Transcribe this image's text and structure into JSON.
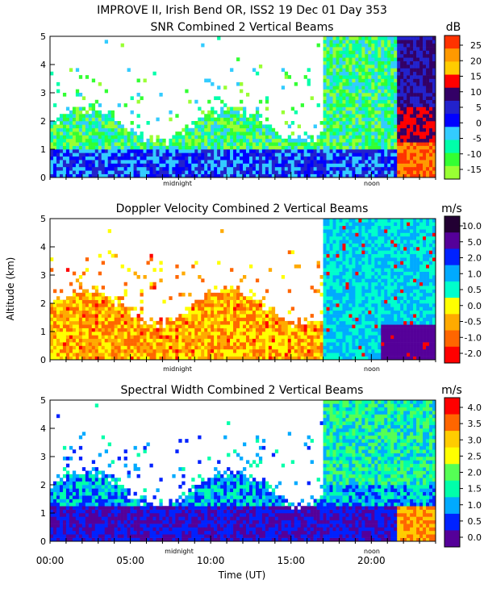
{
  "figure_title": "IMPROVE II,  Irish Bend OR, ISS2  19 Dec 01 Day 353",
  "x_axis_title": "Time (UT)",
  "y_axis_title": "Altitude (km)",
  "x_tick_labels": [
    "00:00",
    "05:00",
    "10:00",
    "15:00",
    "20:00"
  ],
  "y_tick_labels": [
    "0",
    "1",
    "2",
    "3",
    "4",
    "5"
  ],
  "marker_labels": {
    "midnight": "midnight",
    "noon": "noon"
  },
  "chart_data": [
    {
      "type": "heatmap",
      "title": "SNR Combined 2 Vertical Beams",
      "xlabel": "",
      "ylabel": "",
      "xlim": [
        0,
        24
      ],
      "ylim": [
        0,
        5
      ],
      "units": "dB",
      "colorbar_ticks": [
        "25",
        "20",
        "15",
        "10",
        "5",
        "0",
        "-5",
        "-10",
        "-15"
      ],
      "colors": [
        "#ff3300",
        "#ff9900",
        "#ffcc00",
        "#ff0000",
        "#330066",
        "#2222cc",
        "#0000ff",
        "#33ccff",
        "#00ffaa",
        "#33ff33",
        "#99ff33"
      ]
    },
    {
      "type": "heatmap",
      "title": "Doppler Velocity Combined 2 Vertical Beams",
      "xlabel": "",
      "ylabel": "Altitude (km)",
      "xlim": [
        0,
        24
      ],
      "ylim": [
        0,
        5
      ],
      "units": "m/s",
      "colorbar_ticks": [
        "10.0",
        "5.0",
        "2.0",
        "1.0",
        "0.5",
        "0.0",
        "-0.5",
        "-1.0",
        "-2.0"
      ],
      "colors": [
        "#220033",
        "#550099",
        "#0022ff",
        "#00aaff",
        "#00ffcc",
        "#ffff00",
        "#ffaa00",
        "#ff6600",
        "#ff0000"
      ]
    },
    {
      "type": "heatmap",
      "title": "Spectral Width Combined 2 Vertical Beams",
      "xlabel": "Time (UT)",
      "ylabel": "",
      "xlim": [
        0,
        24
      ],
      "ylim": [
        0,
        5
      ],
      "units": "m/s",
      "colorbar_ticks": [
        "4.0",
        "3.5",
        "3.0",
        "2.5",
        "2.0",
        "1.5",
        "1.0",
        "0.5",
        "0.0"
      ],
      "colors": [
        "#ff0000",
        "#ff6600",
        "#ffcc00",
        "#ffff00",
        "#55ff55",
        "#00ffaa",
        "#00aaff",
        "#0022ff",
        "#550099"
      ]
    }
  ]
}
